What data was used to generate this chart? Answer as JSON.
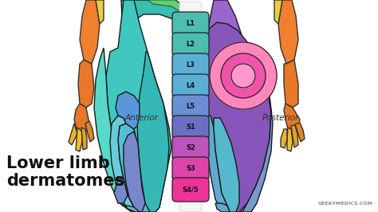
{
  "title": "Lower limb\ndermatomes",
  "title_fontsize": 15,
  "watermark": "GEEKYMEDICS.COM",
  "labels": [
    "L1",
    "L2",
    "L3",
    "L4",
    "L5",
    "S1",
    "S2",
    "S3",
    "S4/5"
  ],
  "label_colors": [
    "#4DBDB0",
    "#4DBDB0",
    "#5BAFD4",
    "#5BAFD4",
    "#6B8FD4",
    "#6B6FC4",
    "#BB55BB",
    "#DD44AA",
    "#EE3399"
  ],
  "anterior_label": "Anterior",
  "posterior_label": "Posterior",
  "bg_color": "#ffffff",
  "label_text_color": "#111111"
}
